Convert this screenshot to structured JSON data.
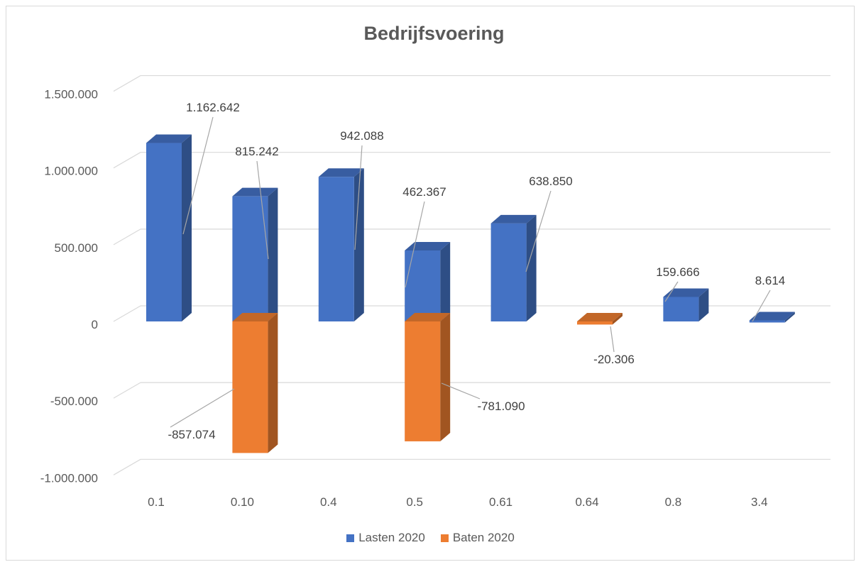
{
  "chart_data": {
    "type": "bar",
    "title": "Bedrijfsvoering",
    "categories": [
      "0.1",
      "0.10",
      "0.4",
      "0.5",
      "0.61",
      "0.64",
      "0.8",
      "3.4"
    ],
    "series": [
      {
        "name": "Lasten 2020",
        "color": "#4472c4",
        "values": [
          1162642,
          815242,
          942088,
          462367,
          638850,
          null,
          159666,
          8614
        ],
        "labels": [
          "1.162.642",
          "815.242",
          "942.088",
          "462.367",
          "638.850",
          null,
          "159.666",
          "8.614"
        ]
      },
      {
        "name": "Baten 2020",
        "color": "#ed7d31",
        "values": [
          null,
          -857074,
          null,
          -781090,
          null,
          -20306,
          null,
          null
        ],
        "labels": [
          null,
          "-857.074",
          null,
          "-781.090",
          null,
          "-20.306",
          null,
          null
        ]
      }
    ],
    "y_ticks": [
      "1.500.000",
      "1.000.000",
      "500.000",
      "0",
      "-500.000",
      "-1.000.000"
    ],
    "ylim": [
      -1000000,
      1500000
    ],
    "grid": true,
    "legend_position": "bottom"
  }
}
